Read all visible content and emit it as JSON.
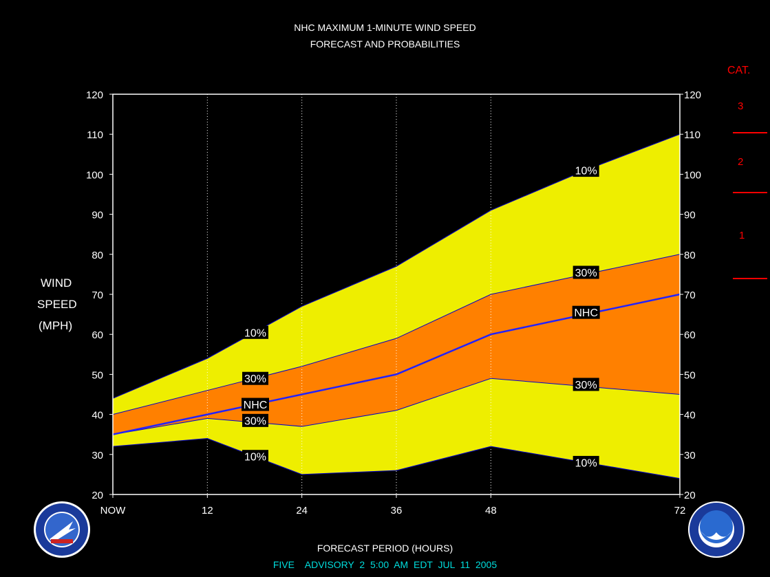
{
  "title_line1": "NHC MAXIMUM 1-MINUTE WIND SPEED",
  "title_line2": "FORECAST AND PROBABILITIES",
  "ylabel_lines": [
    "WIND",
    "SPEED",
    "(MPH)"
  ],
  "xlabel": "FORECAST PERIOD (HOURS)",
  "footer": "FIVE    ADVISORY  2  5:00  AM  EDT  JUL  11  2005",
  "category_panel": {
    "header": "CAT.",
    "labels": [
      "3",
      "2",
      "1"
    ],
    "color": "#ff0000"
  },
  "colors": {
    "outer_band": "#eeee00",
    "inner_band": "#ff8000",
    "nhc_line": "#2222ff",
    "background": "#000000",
    "footer_text": "#00dddd"
  },
  "chart_data": {
    "type": "area",
    "title": "NHC MAXIMUM 1-MINUTE WIND SPEED FORECAST AND PROBABILITIES",
    "xlabel": "FORECAST PERIOD (HOURS)",
    "ylabel": "WIND SPEED (MPH)",
    "xlim": [
      0,
      72
    ],
    "ylim": [
      20,
      120
    ],
    "x_ticks": [
      {
        "value": 0,
        "label": "NOW"
      },
      {
        "value": 12,
        "label": "12"
      },
      {
        "value": 24,
        "label": "24"
      },
      {
        "value": 36,
        "label": "36"
      },
      {
        "value": 48,
        "label": "48"
      },
      {
        "value": 72,
        "label": "72"
      }
    ],
    "y_ticks": [
      20,
      30,
      40,
      50,
      60,
      70,
      80,
      90,
      100,
      110,
      120
    ],
    "x": [
      0,
      12,
      24,
      36,
      48,
      60,
      72
    ],
    "series": [
      {
        "name": "10%",
        "role": "upper_10",
        "values": [
          44,
          54,
          67,
          77,
          91,
          101,
          110
        ]
      },
      {
        "name": "30%",
        "role": "upper_30",
        "values": [
          40,
          46,
          52,
          59,
          70,
          75,
          80
        ]
      },
      {
        "name": "NHC",
        "role": "nhc",
        "values": [
          35,
          40,
          45,
          50,
          60,
          65,
          70
        ]
      },
      {
        "name": "30%",
        "role": "lower_30",
        "values": [
          35,
          39,
          37,
          41,
          49,
          47,
          45
        ]
      },
      {
        "name": "10%",
        "role": "lower_10",
        "values": [
          32,
          34,
          25,
          26,
          32,
          28,
          24
        ]
      }
    ],
    "annotations": [
      {
        "text": "10%",
        "x": 18,
        "y": 60.5
      },
      {
        "text": "30%",
        "x": 18,
        "y": 49
      },
      {
        "text": "NHC",
        "x": 18,
        "y": 42.5
      },
      {
        "text": "30%",
        "x": 18,
        "y": 38.5
      },
      {
        "text": "10%",
        "x": 18,
        "y": 29.5
      },
      {
        "text": "10%",
        "x": 60,
        "y": 101
      },
      {
        "text": "30%",
        "x": 60,
        "y": 75.5
      },
      {
        "text": "NHC",
        "x": 60,
        "y": 65.5
      },
      {
        "text": "30%",
        "x": 60,
        "y": 47.5
      },
      {
        "text": "10%",
        "x": 60,
        "y": 28
      }
    ],
    "grid": "dotted vertical at 12, 24, 36, 48"
  }
}
